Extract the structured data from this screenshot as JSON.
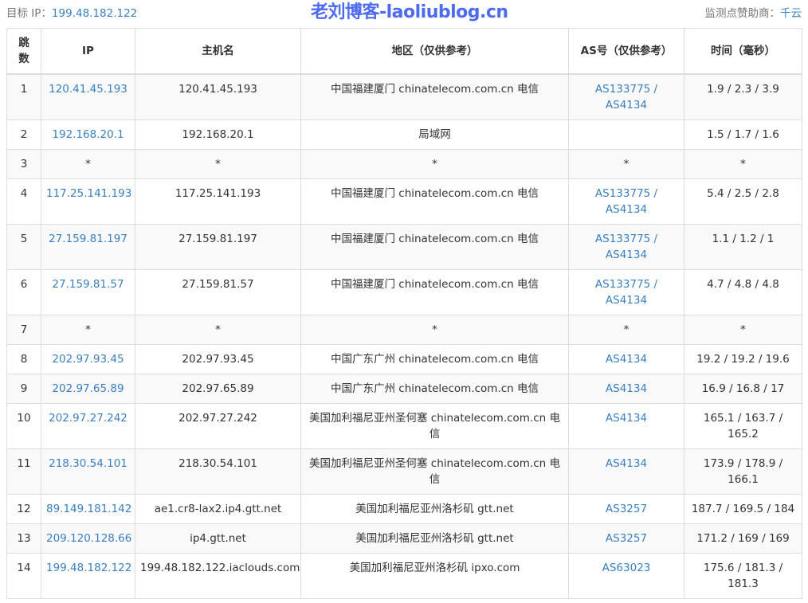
{
  "header": {
    "target_label": "目标 IP：",
    "target_ip": "199.48.182.122",
    "sponsor_label": "监测点赞助商：",
    "sponsor": "千云"
  },
  "columns": [
    "跳数",
    "IP",
    "主机名",
    "地区（仅供参考）",
    "AS号（仅供参考）",
    "时间（毫秒）"
  ],
  "rows": [
    {
      "hop": "1",
      "ip": "120.41.45.193",
      "host": "120.41.45.193",
      "region": "中国福建厦门 chinatelecom.com.cn 电信",
      "as": "AS133775 / AS4134",
      "time": "1.9 / 2.3 / 3.9"
    },
    {
      "hop": "2",
      "ip": "192.168.20.1",
      "host": "192.168.20.1",
      "region": "局域网",
      "as": "",
      "time": "1.5 / 1.7 / 1.6"
    },
    {
      "hop": "3",
      "ip": "*",
      "host": "*",
      "region": "*",
      "as": "*",
      "time": "*"
    },
    {
      "hop": "4",
      "ip": "117.25.141.193",
      "host": "117.25.141.193",
      "region": "中国福建厦门 chinatelecom.com.cn 电信",
      "as": "AS133775 / AS4134",
      "time": "5.4 / 2.5 / 2.8"
    },
    {
      "hop": "5",
      "ip": "27.159.81.197",
      "host": "27.159.81.197",
      "region": "中国福建厦门 chinatelecom.com.cn 电信",
      "as": "AS133775 / AS4134",
      "time": "1.1 / 1.2 / 1"
    },
    {
      "hop": "6",
      "ip": "27.159.81.57",
      "host": "27.159.81.57",
      "region": "中国福建厦门 chinatelecom.com.cn 电信",
      "as": "AS133775 / AS4134",
      "time": "4.7 / 4.8 / 4.8"
    },
    {
      "hop": "7",
      "ip": "*",
      "host": "*",
      "region": "*",
      "as": "*",
      "time": "*"
    },
    {
      "hop": "8",
      "ip": "202.97.93.45",
      "host": "202.97.93.45",
      "region": "中国广东广州 chinatelecom.com.cn 电信",
      "as": "AS4134",
      "time": "19.2 / 19.2 / 19.6"
    },
    {
      "hop": "9",
      "ip": "202.97.65.89",
      "host": "202.97.65.89",
      "region": "中国广东广州 chinatelecom.com.cn 电信",
      "as": "AS4134",
      "time": "16.9 / 16.8 / 17"
    },
    {
      "hop": "10",
      "ip": "202.97.27.242",
      "host": "202.97.27.242",
      "region": "美国加利福尼亚州圣何塞 chinatelecom.com.cn 电信",
      "as": "AS4134",
      "time": "165.1 / 163.7 / 165.2"
    },
    {
      "hop": "11",
      "ip": "218.30.54.101",
      "host": "218.30.54.101",
      "region": "美国加利福尼亚州圣何塞 chinatelecom.com.cn 电信",
      "as": "AS4134",
      "time": "173.9 / 178.9 / 166.1"
    },
    {
      "hop": "12",
      "ip": "89.149.181.142",
      "host": "ae1.cr8-lax2.ip4.gtt.net",
      "region": "美国加利福尼亚州洛杉矶 gtt.net",
      "as": "AS3257",
      "time": "187.7 / 169.5 / 184"
    },
    {
      "hop": "13",
      "ip": "209.120.128.66",
      "host": "ip4.gtt.net",
      "region": "美国加利福尼亚州洛杉矶 gtt.net",
      "as": "AS3257",
      "time": "171.2 / 169 / 169"
    },
    {
      "hop": "14",
      "ip": "199.48.182.122",
      "host": "199.48.182.122.iaclouds.com",
      "region": "美国加利福尼亚州洛杉矶 ipxo.com",
      "as": "AS63023",
      "time": "175.6 / 181.3 / 181.3"
    }
  ],
  "watermark": "老刘博客-laoliublog.cn",
  "colors": {
    "link": "#3a7fc0",
    "stripe": "#f9f9f9",
    "border": "#dddddd"
  }
}
